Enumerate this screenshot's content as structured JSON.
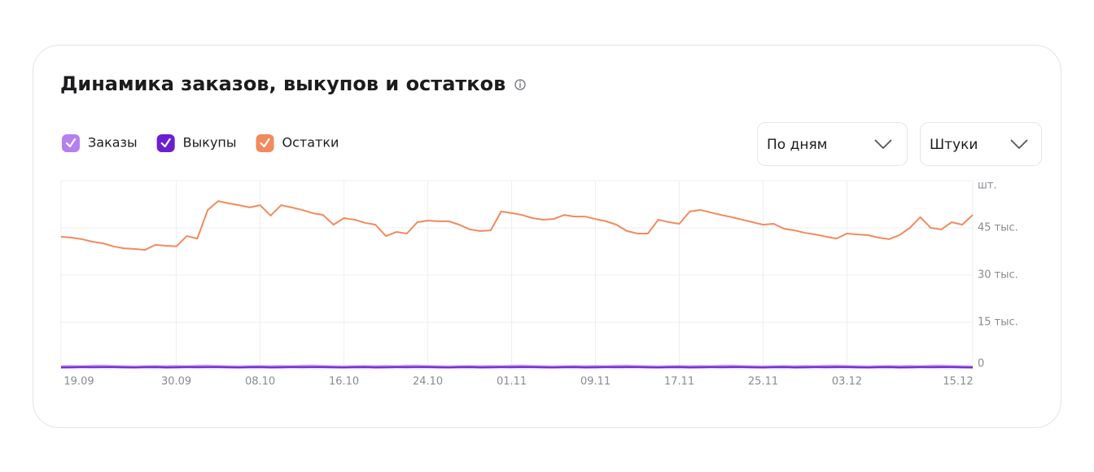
{
  "chart_data": {
    "type": "line",
    "title": "Динамика заказов, выкупов и остатков",
    "y_label": "шт.",
    "categories": [
      "19.09",
      null,
      null,
      null,
      null,
      null,
      null,
      null,
      null,
      null,
      null,
      "30.09",
      null,
      null,
      null,
      null,
      null,
      null,
      null,
      "08.10",
      null,
      null,
      null,
      null,
      null,
      null,
      null,
      "16.10",
      null,
      null,
      null,
      null,
      null,
      null,
      null,
      "24.10",
      null,
      null,
      null,
      null,
      null,
      null,
      null,
      "01.11",
      null,
      null,
      null,
      null,
      null,
      null,
      null,
      "09.11",
      null,
      null,
      null,
      null,
      null,
      null,
      null,
      "17.11",
      null,
      null,
      null,
      null,
      null,
      null,
      null,
      "25.11",
      null,
      null,
      null,
      null,
      null,
      null,
      null,
      "03.12",
      null,
      null,
      null,
      null,
      null,
      null,
      null,
      null,
      null,
      null,
      null,
      "15.12"
    ],
    "series": [
      {
        "name": "Заказы",
        "color": "#b57ff0",
        "values": [
          1000,
          1100,
          1050,
          1150,
          1200,
          1100,
          1000,
          950,
          1050,
          1100,
          1000,
          1100,
          1050,
          1150,
          1200,
          1100,
          1000,
          950,
          1050,
          1100,
          1000,
          1100,
          1050,
          1150,
          1200,
          1100,
          1000,
          950,
          1050,
          1100,
          1000,
          1100,
          1050,
          1150,
          1200,
          1100,
          1000,
          950,
          1050,
          1100,
          1000,
          1100,
          1050,
          1150,
          1200,
          1100,
          1000,
          950,
          1050,
          1100,
          1000,
          1100,
          1050,
          1150,
          1200,
          1100,
          1000,
          950,
          1050,
          1100,
          1000,
          1100,
          1050,
          1150,
          1200,
          1100,
          1000,
          950,
          1050,
          1100,
          1000,
          1100,
          1050,
          1150,
          1200,
          1100,
          1000,
          950,
          1050,
          1100,
          1000,
          1100,
          1050,
          1150,
          1200,
          1100,
          1000,
          950
        ]
      },
      {
        "name": "Выкупы",
        "color": "#6b1fd1",
        "values": [
          600,
          650,
          700,
          680,
          720,
          700,
          650,
          620,
          680,
          700,
          600,
          650,
          700,
          680,
          720,
          700,
          650,
          620,
          680,
          700,
          600,
          650,
          700,
          680,
          720,
          700,
          650,
          620,
          680,
          700,
          600,
          650,
          700,
          680,
          720,
          700,
          650,
          620,
          680,
          700,
          600,
          650,
          700,
          680,
          720,
          700,
          650,
          620,
          680,
          700,
          600,
          650,
          700,
          680,
          720,
          700,
          650,
          620,
          680,
          700,
          600,
          650,
          700,
          680,
          720,
          700,
          650,
          620,
          680,
          700,
          600,
          650,
          700,
          680,
          720,
          700,
          650,
          620,
          680,
          700,
          600,
          650,
          700,
          680,
          720,
          700,
          650,
          620
        ]
      },
      {
        "name": "Остатки",
        "color": "#f28a5e",
        "values": [
          42200,
          41900,
          41400,
          40600,
          40100,
          39100,
          38500,
          38300,
          38000,
          39600,
          39300,
          39100,
          42400,
          41600,
          50700,
          53500,
          52800,
          52200,
          51500,
          52200,
          48900,
          52200,
          51500,
          50700,
          49700,
          49100,
          46000,
          48100,
          47600,
          46600,
          46000,
          42400,
          43700,
          43200,
          46800,
          47300,
          47100,
          47100,
          46000,
          44500,
          44000,
          44200,
          50200,
          49700,
          49100,
          48100,
          47600,
          47800,
          49100,
          48600,
          48600,
          47800,
          47100,
          46000,
          44000,
          43200,
          43200,
          47600,
          46800,
          46300,
          50200,
          50700,
          49900,
          49100,
          48400,
          47600,
          46800,
          46000,
          46300,
          44700,
          44200,
          43400,
          42900,
          42200,
          41600,
          43200,
          42900,
          42700,
          41900,
          41400,
          42700,
          45000,
          48400,
          45000,
          44500,
          46800,
          46000,
          49100
        ]
      }
    ],
    "ylim": [
      0,
      60000
    ],
    "yticks": [
      0,
      {
        "value": 15000,
        "label": "15 тыс."
      },
      {
        "value": 30000,
        "label": "30 тыс."
      },
      {
        "value": 45000,
        "label": "45 тыс."
      }
    ],
    "grid": true
  },
  "controls": {
    "period": "По дням",
    "units": "Штуки"
  }
}
